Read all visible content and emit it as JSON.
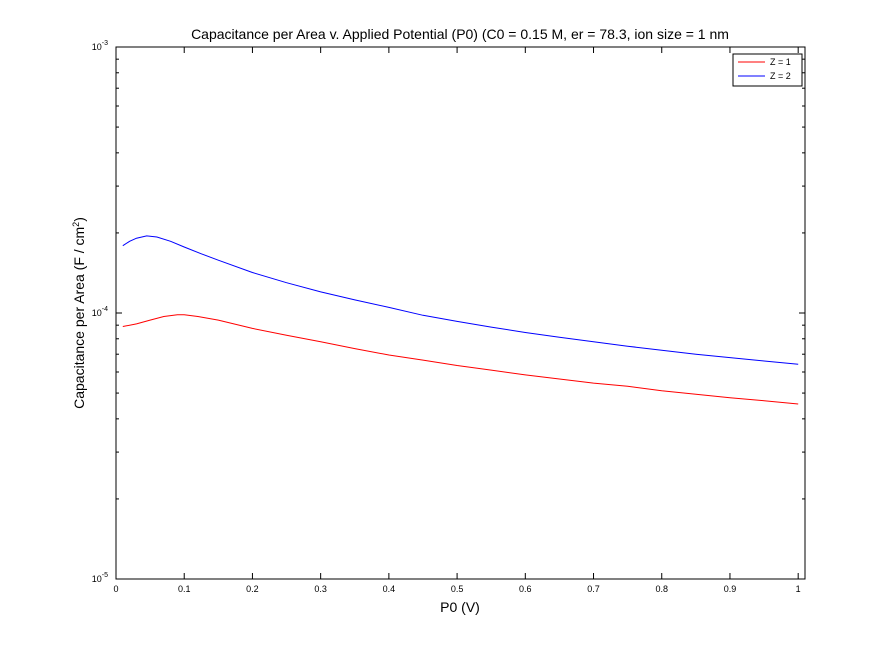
{
  "chart_data": {
    "type": "line",
    "title": "Capacitance per Area v. Applied Potential (P0) (C0 = 0.15 M, er = 78.3, ion size = 1 nm",
    "xlabel": "P0 (V)",
    "ylabel_prefix": "Capacitance per Area (F / cm",
    "ylabel_sup": "2",
    "ylabel_suffix": ")",
    "xlim": [
      0,
      1.01
    ],
    "ylim": [
      1e-05,
      0.001
    ],
    "yscale": "log",
    "grid": false,
    "legend_position": "top-right",
    "x_ticks": [
      "0",
      "0.1",
      "0.2",
      "0.3",
      "0.4",
      "0.5",
      "0.6",
      "0.7",
      "0.8",
      "0.9",
      "1"
    ],
    "y_ticks": [
      {
        "base": "10",
        "exp": "-5"
      },
      {
        "base": "10",
        "exp": "-4"
      },
      {
        "base": "10",
        "exp": "-3"
      }
    ],
    "series": [
      {
        "name": "Z = 1",
        "color": "#ff0000",
        "points": [
          [
            0.01,
            8.9e-05
          ],
          [
            0.03,
            9.1e-05
          ],
          [
            0.05,
            9.4e-05
          ],
          [
            0.07,
            9.7e-05
          ],
          [
            0.09,
            9.85e-05
          ],
          [
            0.1,
            9.85e-05
          ],
          [
            0.12,
            9.7e-05
          ],
          [
            0.15,
            9.4e-05
          ],
          [
            0.2,
            8.75e-05
          ],
          [
            0.25,
            8.25e-05
          ],
          [
            0.3,
            7.8e-05
          ],
          [
            0.35,
            7.35e-05
          ],
          [
            0.4,
            6.95e-05
          ],
          [
            0.45,
            6.65e-05
          ],
          [
            0.5,
            6.35e-05
          ],
          [
            0.55,
            6.1e-05
          ],
          [
            0.6,
            5.85e-05
          ],
          [
            0.65,
            5.65e-05
          ],
          [
            0.7,
            5.45e-05
          ],
          [
            0.75,
            5.3e-05
          ],
          [
            0.8,
            5.1e-05
          ],
          [
            0.85,
            4.95e-05
          ],
          [
            0.9,
            4.8e-05
          ],
          [
            0.95,
            4.68e-05
          ],
          [
            1.0,
            4.55e-05
          ]
        ]
      },
      {
        "name": "Z = 2",
        "color": "#0000ff",
        "points": [
          [
            0.01,
            0.000179
          ],
          [
            0.02,
            0.000186
          ],
          [
            0.03,
            0.000191
          ],
          [
            0.045,
            0.000195
          ],
          [
            0.06,
            0.000193
          ],
          [
            0.08,
            0.000186
          ],
          [
            0.1,
            0.000177
          ],
          [
            0.125,
            0.000167
          ],
          [
            0.15,
            0.000158
          ],
          [
            0.2,
            0.000142
          ],
          [
            0.25,
            0.00013
          ],
          [
            0.3,
            0.00012
          ],
          [
            0.35,
            0.000112
          ],
          [
            0.4,
            0.000105
          ],
          [
            0.45,
            9.8e-05
          ],
          [
            0.5,
            9.3e-05
          ],
          [
            0.55,
            8.85e-05
          ],
          [
            0.6,
            8.45e-05
          ],
          [
            0.65,
            8.1e-05
          ],
          [
            0.7,
            7.8e-05
          ],
          [
            0.75,
            7.5e-05
          ],
          [
            0.8,
            7.25e-05
          ],
          [
            0.85,
            7e-05
          ],
          [
            0.9,
            6.8e-05
          ],
          [
            0.95,
            6.6e-05
          ],
          [
            1.0,
            6.42e-05
          ]
        ]
      }
    ]
  }
}
